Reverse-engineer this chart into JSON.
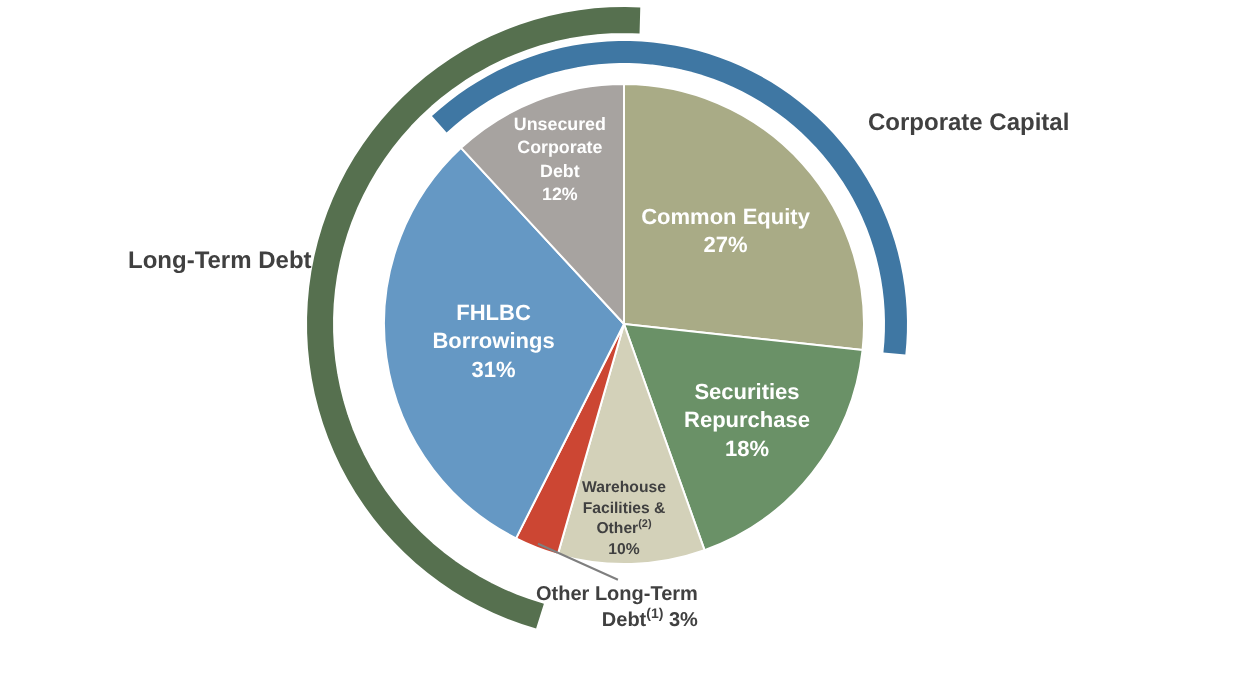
{
  "chart_data": {
    "type": "pie",
    "categories": [
      "Common Equity",
      "Securities Repurchase",
      "Warehouse Facilities & Other$^{(2)}$",
      "Other Long-Term Debt$^{(1)}$",
      "FHLBC Borrowings",
      "Unsecured Corporate Debt"
    ],
    "values": [
      27,
      18,
      10,
      3,
      31,
      12
    ],
    "value_labels": [
      "27%",
      "18%",
      "10%",
      "3%",
      "31%",
      "12%"
    ],
    "colors": [
      "#a9ab86",
      "#6a9167",
      "#d3d1b9",
      "#cc4633",
      "#6598c4",
      "#a7a3a0"
    ],
    "annotations": [
      "Corporate Capital",
      "Long-Term Debt"
    ],
    "legend": false
  }
}
